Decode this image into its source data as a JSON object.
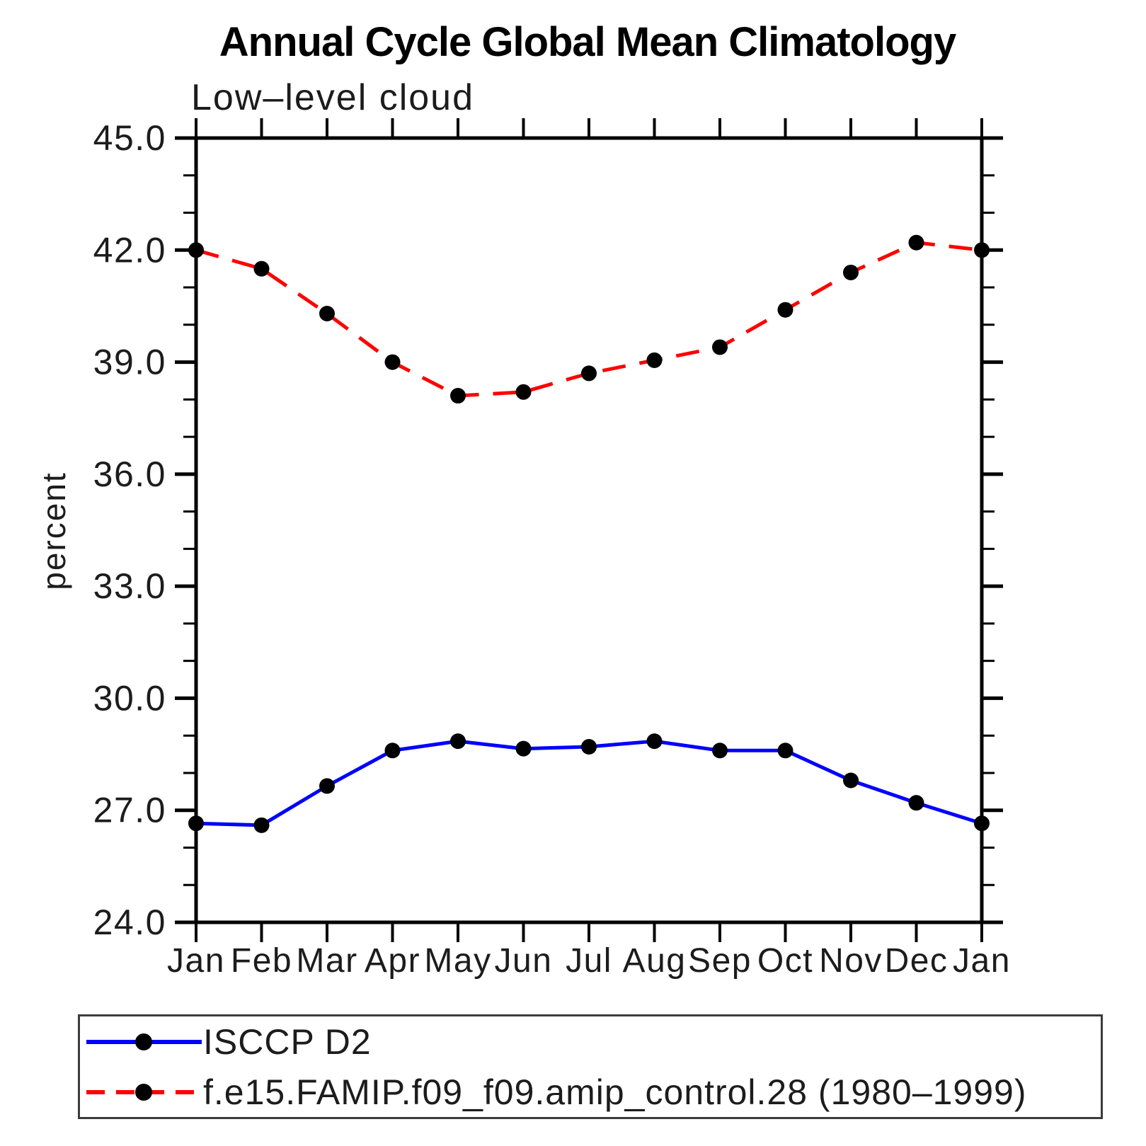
{
  "chart_data": {
    "type": "line",
    "title": "Annual Cycle Global Mean Climatology",
    "subtitle": "Low–level cloud",
    "ylabel": "percent",
    "x_categories": [
      "Jan",
      "Feb",
      "Mar",
      "Apr",
      "May",
      "Jun",
      "Jul",
      "Aug",
      "Sep",
      "Oct",
      "Nov",
      "Dec",
      "Jan"
    ],
    "ylim": [
      24.0,
      45.0
    ],
    "y_ticks": {
      "values": [
        24,
        27,
        30,
        33,
        36,
        39,
        42,
        45
      ],
      "labels": [
        "24.0",
        "27.0",
        "30.0",
        "33.0",
        "36.0",
        "39.0",
        "42.0",
        "45.0"
      ]
    },
    "y_minor_step": 1.0,
    "grid": false,
    "legend_position": "below-left",
    "frame_color": "#000000",
    "marker": "filled-circle",
    "marker_color": "#000000",
    "series": [
      {
        "name": "ISCCP D2",
        "color": "#0000ff",
        "line_style": "solid",
        "values": [
          26.65,
          26.6,
          27.65,
          28.6,
          28.85,
          28.65,
          28.7,
          28.85,
          28.6,
          28.6,
          27.8,
          27.2,
          26.65
        ]
      },
      {
        "name": "f.e15.FAMIP.f09_f09.amip_control.28 (1980–1999)",
        "color": "#ff0000",
        "line_style": "dashed",
        "values": [
          42.0,
          41.5,
          40.3,
          39.0,
          38.1,
          38.2,
          38.7,
          39.05,
          39.4,
          40.4,
          41.4,
          42.2,
          42.0
        ]
      }
    ]
  }
}
